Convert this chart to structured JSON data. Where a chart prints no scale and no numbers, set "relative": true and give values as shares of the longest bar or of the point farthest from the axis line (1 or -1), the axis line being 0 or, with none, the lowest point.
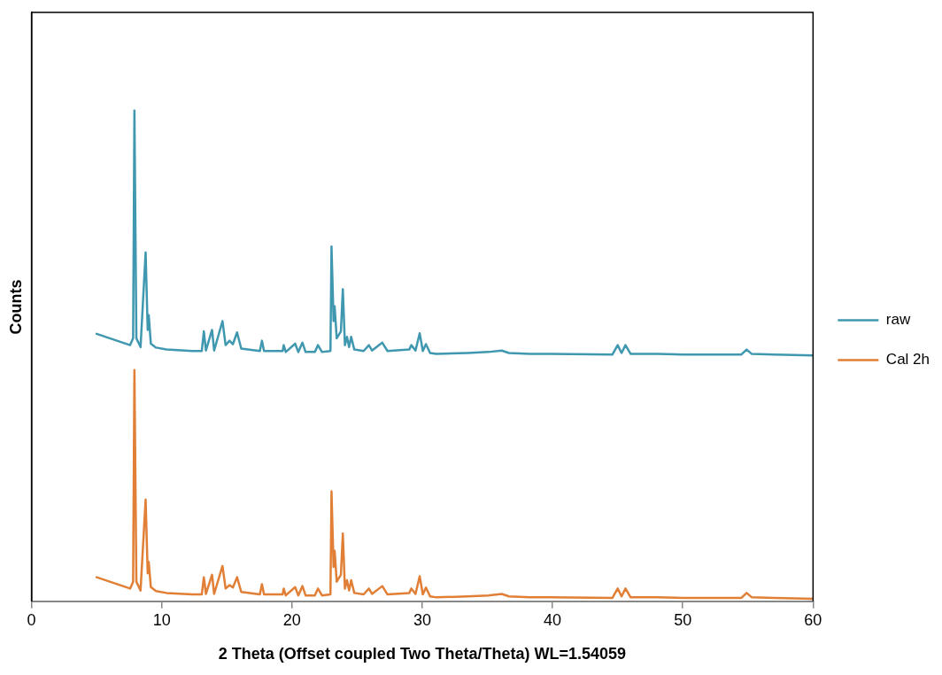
{
  "chart_data": {
    "type": "line",
    "xlabel": "2 Theta (Offset coupled Two Theta/Theta) WL=1.54059",
    "ylabel": "Counts",
    "relative": true,
    "xlim": [
      0,
      60
    ],
    "xticks": [
      0,
      10,
      20,
      30,
      40,
      50,
      60
    ],
    "grid": false,
    "legend": "right",
    "marker": "none",
    "line_style": "solid",
    "x": [
      5.0,
      7.57,
      7.8,
      7.9,
      8.05,
      8.37,
      8.76,
      8.92,
      9.0,
      9.16,
      9.56,
      10.36,
      12.35,
      13.07,
      13.23,
      13.39,
      13.86,
      14.02,
      14.66,
      14.9,
      15.2,
      15.46,
      15.78,
      16.1,
      17.53,
      17.69,
      17.85,
      19.28,
      19.36,
      19.52,
      20.24,
      20.48,
      20.8,
      21.04,
      21.75,
      21.99,
      22.3,
      22.95,
      23.03,
      23.19,
      23.27,
      23.43,
      23.75,
      23.9,
      24.06,
      24.22,
      24.38,
      24.54,
      24.78,
      25.5,
      25.9,
      26.14,
      26.93,
      27.33,
      29.0,
      29.16,
      29.48,
      29.8,
      30.04,
      30.28,
      30.6,
      31.08,
      33.47,
      35.06,
      36.1,
      36.65,
      38.25,
      39.84,
      44.6,
      45.0,
      45.3,
      45.6,
      46.0,
      48.0,
      50.0,
      54.5,
      54.9,
      55.3,
      57.0,
      60.0
    ],
    "series": [
      {
        "name": "raw",
        "color": "#3f98b0",
        "values": [
          0.545,
          0.522,
          0.536,
          1.0,
          0.536,
          0.518,
          0.711,
          0.553,
          0.583,
          0.525,
          0.517,
          0.513,
          0.51,
          0.51,
          0.55,
          0.511,
          0.553,
          0.511,
          0.571,
          0.522,
          0.531,
          0.524,
          0.548,
          0.515,
          0.51,
          0.531,
          0.51,
          0.51,
          0.522,
          0.508,
          0.525,
          0.508,
          0.527,
          0.508,
          0.508,
          0.522,
          0.508,
          0.51,
          0.723,
          0.571,
          0.601,
          0.536,
          0.55,
          0.636,
          0.522,
          0.539,
          0.518,
          0.539,
          0.513,
          0.51,
          0.522,
          0.511,
          0.527,
          0.51,
          0.513,
          0.522,
          0.511,
          0.546,
          0.51,
          0.524,
          0.506,
          0.504,
          0.506,
          0.508,
          0.511,
          0.506,
          0.504,
          0.504,
          0.503,
          0.522,
          0.506,
          0.522,
          0.504,
          0.504,
          0.503,
          0.503,
          0.513,
          0.504,
          0.503,
          0.501
        ]
      },
      {
        "name": "Cal 2h",
        "color": "#e07f35",
        "values": [
          0.049,
          0.026,
          0.04,
          0.471,
          0.04,
          0.022,
          0.207,
          0.057,
          0.08,
          0.029,
          0.021,
          0.017,
          0.014,
          0.014,
          0.049,
          0.015,
          0.054,
          0.015,
          0.072,
          0.026,
          0.033,
          0.028,
          0.049,
          0.019,
          0.014,
          0.035,
          0.014,
          0.014,
          0.026,
          0.012,
          0.029,
          0.012,
          0.031,
          0.012,
          0.012,
          0.026,
          0.012,
          0.014,
          0.224,
          0.07,
          0.103,
          0.04,
          0.054,
          0.138,
          0.026,
          0.043,
          0.022,
          0.043,
          0.017,
          0.014,
          0.026,
          0.015,
          0.031,
          0.014,
          0.017,
          0.026,
          0.015,
          0.051,
          0.014,
          0.028,
          0.01,
          0.008,
          0.01,
          0.012,
          0.015,
          0.01,
          0.008,
          0.008,
          0.007,
          0.026,
          0.01,
          0.026,
          0.008,
          0.008,
          0.007,
          0.007,
          0.017,
          0.008,
          0.007,
          0.005
        ]
      }
    ]
  }
}
